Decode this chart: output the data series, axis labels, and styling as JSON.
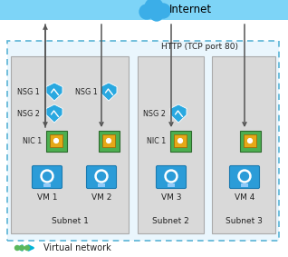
{
  "title_internet": "Internet",
  "label_http": "HTTP (TCP port 80)",
  "label_vnet": "Virtual network",
  "internet_bar_color": "#7dd4f7",
  "vnet_bg_color": "#eaf6fd",
  "vnet_border_color": "#5ab4d6",
  "subnet_bg_color": "#d9d9d9",
  "subnet_border_color": "#aaaaaa",
  "nsg_shield_color": "#29a8e0",
  "arrow_color": "#555555",
  "font_color": "#222222",
  "cloud_color": "#3baee8",
  "vnet_icon_color": "#00b4d8",
  "vnet_icon_dot_color": "#5cb85c",
  "nic_outer": "#4caf50",
  "nic_inner": "#e6a817",
  "vm_blue": "#2b9cd8",
  "vm_blue_dark": "#1a7ab0",
  "vm_sphere": "#ffffff"
}
